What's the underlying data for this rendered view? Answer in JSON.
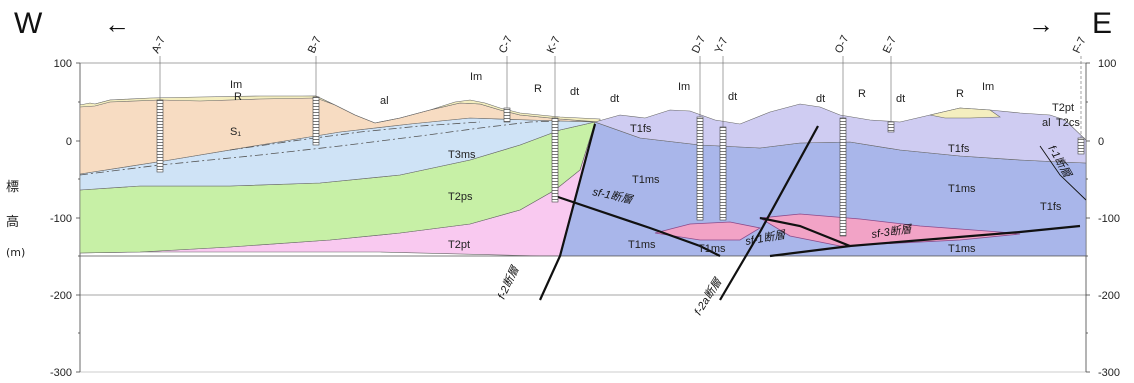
{
  "west_label": "W",
  "west_arrow": "←",
  "east_label": "E",
  "east_arrow": "→",
  "y_axis_label": [
    "標",
    "高",
    "(m)"
  ],
  "y_ticks": [
    "100",
    "0",
    "-100",
    "-200",
    "-300"
  ],
  "boreholes": [
    "A-7",
    "B-7",
    "C-7",
    "K-7",
    "D-7",
    "Y-7",
    "O-7",
    "E-7",
    "F-7"
  ],
  "units": {
    "Im": "Im",
    "R": "R",
    "al": "al",
    "dt": "dt",
    "S1": "S₁",
    "T3ms": "T3ms",
    "T2ps": "T2ps",
    "T2pt": "T2pt",
    "T1fs": "T1fs",
    "T1ms": "T1ms",
    "T2cs": "T2cs"
  },
  "faults": {
    "f2": "f-2断層",
    "f2a": "f-2a断層",
    "sf1": "sf-1断層",
    "sf3": "sf-3断層",
    "f1": "f-1断層"
  },
  "colors": {
    "surface_soil": "#f4eebf",
    "s1": "#f7dcc2",
    "t3ms": "#cfe3f6",
    "t2ps": "#c7f0a6",
    "t2pt": "#f9c9f0",
    "t1fs": "#cfccf2",
    "t1ms": "#a9b6ea",
    "lens": "#f2a3c6"
  }
}
